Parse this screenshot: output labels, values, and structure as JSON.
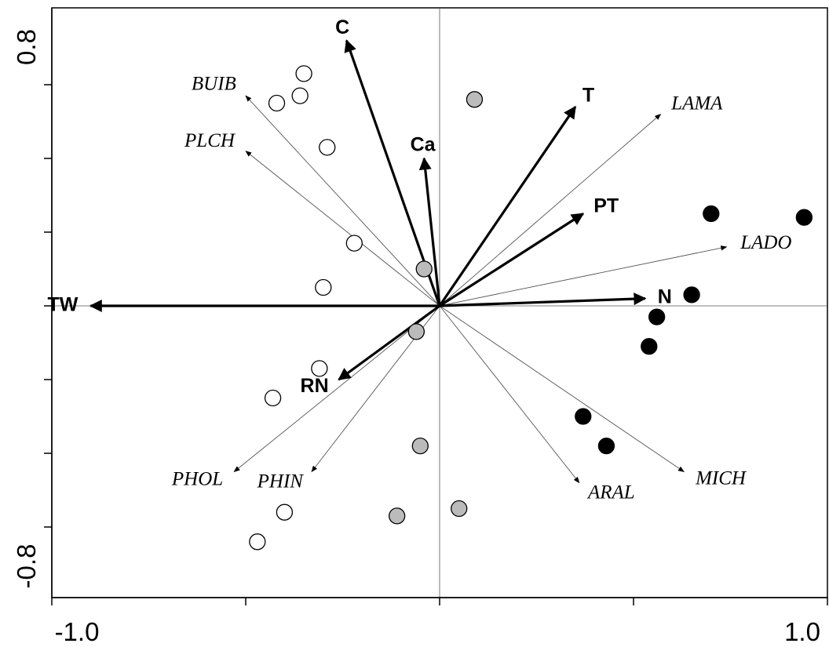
{
  "chart_data": {
    "type": "scatter",
    "subtype": "ordination-biplot",
    "title": "",
    "xlabel": "",
    "ylabel": "",
    "xlim": [
      -1.0,
      1.0
    ],
    "ylim": [
      -0.8,
      0.8
    ],
    "x_tick_labels": [
      {
        "value": -1.0,
        "label": "-1.0"
      },
      {
        "value": 1.0,
        "label": "1.0"
      }
    ],
    "y_tick_labels": [
      {
        "value": 0.8,
        "label": "0.8"
      },
      {
        "value": -0.8,
        "label": "-0.8"
      }
    ],
    "zero_lines": true,
    "environmental_vectors": [
      {
        "label": "C",
        "x": -0.24,
        "y": 0.72
      },
      {
        "label": "Ca",
        "x": -0.04,
        "y": 0.4
      },
      {
        "label": "T",
        "x": 0.35,
        "y": 0.54
      },
      {
        "label": "PT",
        "x": 0.37,
        "y": 0.25
      },
      {
        "label": "N",
        "x": 0.53,
        "y": 0.02
      },
      {
        "label": "TW",
        "x": -0.9,
        "y": 0.0
      },
      {
        "label": "RN",
        "x": -0.26,
        "y": -0.2
      }
    ],
    "species_vectors": [
      {
        "label": "BUIB",
        "x": -0.5,
        "y": 0.57
      },
      {
        "label": "PLCH",
        "x": -0.5,
        "y": 0.42
      },
      {
        "label": "LAMA",
        "x": 0.57,
        "y": 0.52
      },
      {
        "label": "LADO",
        "x": 0.74,
        "y": 0.16
      },
      {
        "label": "PHOL",
        "x": -0.53,
        "y": -0.45
      },
      {
        "label": "PHIN",
        "x": -0.33,
        "y": -0.45
      },
      {
        "label": "ARAL",
        "x": 0.36,
        "y": -0.48
      },
      {
        "label": "MICH",
        "x": 0.63,
        "y": -0.45
      }
    ],
    "sample_series": [
      {
        "marker": "open-circle",
        "fill": "#ffffff",
        "points": [
          {
            "x": -0.35,
            "y": 0.63
          },
          {
            "x": -0.36,
            "y": 0.57
          },
          {
            "x": -0.42,
            "y": 0.55
          },
          {
            "x": -0.29,
            "y": 0.43
          },
          {
            "x": -0.22,
            "y": 0.17
          },
          {
            "x": -0.3,
            "y": 0.05
          },
          {
            "x": -0.31,
            "y": -0.17
          },
          {
            "x": -0.43,
            "y": -0.25
          },
          {
            "x": -0.4,
            "y": -0.56
          },
          {
            "x": -0.47,
            "y": -0.64
          }
        ]
      },
      {
        "marker": "filled-circle",
        "fill": "#bbbbbb",
        "points": [
          {
            "x": 0.09,
            "y": 0.56
          },
          {
            "x": -0.04,
            "y": 0.1
          },
          {
            "x": -0.06,
            "y": -0.07
          },
          {
            "x": -0.05,
            "y": -0.38
          },
          {
            "x": -0.11,
            "y": -0.57
          },
          {
            "x": 0.05,
            "y": -0.55
          }
        ]
      },
      {
        "marker": "filled-circle",
        "fill": "#000000",
        "points": [
          {
            "x": 0.7,
            "y": 0.25
          },
          {
            "x": 0.94,
            "y": 0.24
          },
          {
            "x": 0.65,
            "y": 0.03
          },
          {
            "x": 0.56,
            "y": -0.03
          },
          {
            "x": 0.54,
            "y": -0.11
          },
          {
            "x": 0.37,
            "y": -0.3
          },
          {
            "x": 0.43,
            "y": -0.38
          }
        ]
      }
    ]
  }
}
